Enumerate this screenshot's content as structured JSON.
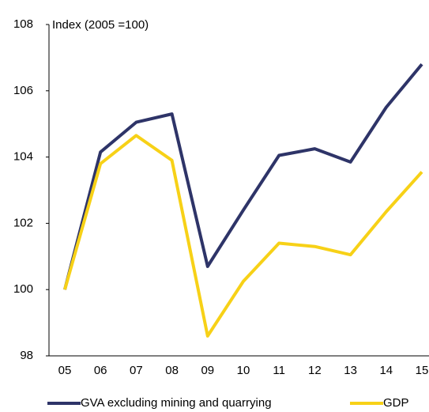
{
  "chart_data": {
    "type": "line",
    "y_axis_label": "Index (2005 =100)",
    "categories": [
      "05",
      "06",
      "07",
      "08",
      "09",
      "10",
      "11",
      "12",
      "13",
      "14",
      "15"
    ],
    "series": [
      {
        "name": "GVA excluding mining and quarrying",
        "color": "#2e3468",
        "values": [
          100,
          104.15,
          105.05,
          105.3,
          100.7,
          102.4,
          104.05,
          104.25,
          103.85,
          105.5,
          106.8
        ]
      },
      {
        "name": "GDP",
        "color": "#f7d117",
        "values": [
          100,
          103.8,
          104.65,
          103.9,
          98.6,
          100.25,
          101.4,
          101.3,
          101.05,
          102.35,
          103.55
        ]
      }
    ],
    "ylim": [
      98,
      108
    ],
    "yticks": [
      98,
      100,
      102,
      104,
      106,
      108
    ]
  }
}
